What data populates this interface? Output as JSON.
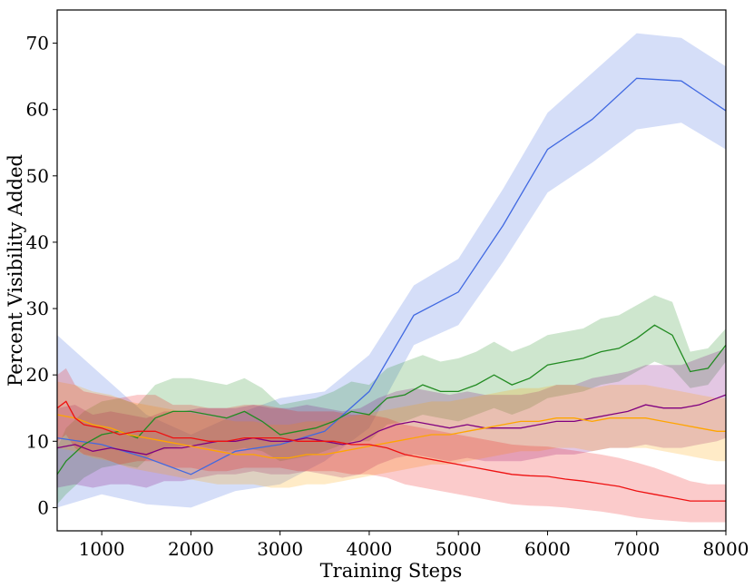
{
  "chart_data": {
    "type": "line",
    "title": "",
    "xlabel": "Training Steps",
    "ylabel": "Percent Visibility Added",
    "xlim": [
      500,
      8000
    ],
    "ylim": [
      -3.5,
      75
    ],
    "xticks": [
      1000,
      2000,
      3000,
      4000,
      5000,
      6000,
      7000,
      8000
    ],
    "yticks": [
      0,
      10,
      20,
      30,
      40,
      50,
      60,
      70
    ],
    "grid": false,
    "legend": "none",
    "series": [
      {
        "color": "#4169e1",
        "x": [
          500,
          1000,
          1500,
          2000,
          2500,
          3000,
          3500,
          4000,
          4500,
          5000,
          5500,
          6000,
          6500,
          7000,
          7500,
          8000
        ],
        "y": [
          10.5,
          9.5,
          7.5,
          5.0,
          8.5,
          9.5,
          11.5,
          17.5,
          29.0,
          32.5,
          42.5,
          54.0,
          58.5,
          64.7,
          64.3,
          59.8
        ],
        "lower": [
          0.0,
          2.0,
          0.5,
          0.0,
          2.5,
          3.5,
          7.0,
          12.0,
          24.5,
          27.5,
          37.0,
          47.5,
          52.0,
          57.0,
          58.0,
          54.0
        ],
        "upper": [
          26.0,
          20.0,
          14.0,
          11.0,
          14.0,
          16.5,
          17.5,
          23.0,
          33.5,
          37.5,
          48.0,
          59.5,
          65.5,
          71.5,
          70.8,
          66.5
        ]
      },
      {
        "color": "#228b22",
        "x": [
          500,
          600,
          800,
          1000,
          1200,
          1400,
          1600,
          1800,
          2000,
          2200,
          2400,
          2600,
          2800,
          3000,
          3200,
          3400,
          3600,
          3800,
          4000,
          4200,
          4400,
          4600,
          4800,
          5000,
          5200,
          5400,
          5600,
          5800,
          6000,
          6200,
          6400,
          6600,
          6800,
          7000,
          7200,
          7400,
          7600,
          7800,
          8000
        ],
        "y": [
          5.0,
          7.0,
          9.5,
          11.0,
          11.5,
          10.5,
          13.5,
          14.5,
          14.5,
          14.0,
          13.5,
          14.5,
          13.0,
          11.0,
          11.5,
          12.0,
          13.0,
          14.5,
          14.0,
          16.5,
          17.0,
          18.5,
          17.5,
          17.5,
          18.5,
          20.0,
          18.5,
          19.5,
          21.5,
          22.0,
          22.5,
          23.5,
          24.0,
          25.5,
          27.5,
          26.0,
          20.5,
          21.0,
          24.5
        ],
        "lower": [
          0.5,
          2.0,
          4.5,
          6.0,
          6.5,
          6.0,
          8.5,
          9.0,
          9.5,
          9.0,
          8.5,
          9.0,
          8.5,
          7.0,
          7.5,
          8.0,
          9.0,
          10.0,
          10.0,
          12.5,
          13.0,
          14.0,
          13.5,
          13.0,
          14.0,
          15.0,
          14.0,
          15.0,
          16.5,
          17.0,
          17.5,
          18.5,
          19.0,
          20.5,
          22.0,
          21.0,
          18.0,
          18.5,
          22.0
        ],
        "upper": [
          9.0,
          12.0,
          14.5,
          16.0,
          16.5,
          15.5,
          18.5,
          19.5,
          19.5,
          19.0,
          18.5,
          19.5,
          18.0,
          15.5,
          16.0,
          16.5,
          17.5,
          19.0,
          18.5,
          21.0,
          22.0,
          23.0,
          22.0,
          22.5,
          23.5,
          25.0,
          23.5,
          24.5,
          26.0,
          26.5,
          27.0,
          28.5,
          29.0,
          30.5,
          32.0,
          31.0,
          23.5,
          24.0,
          27.0
        ]
      },
      {
        "color": "#800080",
        "x": [
          500,
          700,
          900,
          1100,
          1300,
          1500,
          1700,
          1900,
          2100,
          2300,
          2500,
          2700,
          2900,
          3100,
          3300,
          3500,
          3700,
          3900,
          4100,
          4300,
          4500,
          4700,
          4900,
          5100,
          5300,
          5500,
          5700,
          5900,
          6100,
          6300,
          6500,
          6700,
          6900,
          7100,
          7300,
          7500,
          7700,
          7900,
          8000
        ],
        "y": [
          9.0,
          9.5,
          8.5,
          9.0,
          8.5,
          8.0,
          9.0,
          9.0,
          9.5,
          10.0,
          10.0,
          10.5,
          10.0,
          10.0,
          10.5,
          10.0,
          9.5,
          10.0,
          11.5,
          12.5,
          13.0,
          12.5,
          12.0,
          12.5,
          12.0,
          12.0,
          12.0,
          12.5,
          13.0,
          13.0,
          13.5,
          14.0,
          14.5,
          15.5,
          15.0,
          15.0,
          15.5,
          16.5,
          17.0
        ],
        "lower": [
          3.0,
          3.5,
          3.0,
          3.5,
          3.5,
          3.0,
          4.0,
          4.0,
          4.5,
          5.0,
          5.0,
          5.5,
          5.0,
          5.0,
          5.5,
          5.0,
          4.5,
          5.0,
          6.5,
          7.5,
          8.0,
          7.5,
          7.0,
          7.5,
          7.0,
          7.0,
          7.0,
          7.5,
          8.0,
          8.0,
          8.5,
          9.0,
          9.0,
          9.5,
          9.0,
          9.0,
          9.5,
          10.0,
          10.5
        ],
        "upper": [
          15.0,
          15.5,
          14.0,
          14.5,
          14.0,
          13.5,
          14.5,
          14.5,
          15.0,
          15.0,
          15.0,
          15.5,
          15.0,
          15.0,
          15.5,
          15.0,
          14.5,
          15.0,
          16.5,
          17.5,
          18.0,
          17.5,
          17.0,
          17.5,
          17.0,
          17.0,
          17.0,
          17.5,
          18.5,
          18.5,
          19.5,
          20.0,
          20.5,
          21.5,
          21.5,
          21.5,
          22.5,
          23.5,
          24.0
        ]
      },
      {
        "color": "#ffa500",
        "x": [
          500,
          700,
          900,
          1100,
          1300,
          1500,
          1700,
          1900,
          2100,
          2300,
          2500,
          2700,
          2900,
          3100,
          3300,
          3500,
          3700,
          3900,
          4100,
          4300,
          4500,
          4700,
          4900,
          5100,
          5300,
          5500,
          5700,
          5900,
          6100,
          6300,
          6500,
          6700,
          6900,
          7100,
          7300,
          7500,
          7700,
          7900,
          8000
        ],
        "y": [
          14.0,
          13.5,
          12.5,
          12.0,
          11.0,
          10.5,
          10.0,
          9.5,
          9.0,
          8.5,
          8.0,
          8.0,
          7.5,
          7.5,
          8.0,
          8.0,
          8.5,
          9.0,
          9.5,
          10.0,
          10.5,
          11.0,
          11.0,
          11.5,
          12.0,
          12.5,
          13.0,
          13.0,
          13.5,
          13.5,
          13.0,
          13.5,
          13.5,
          13.5,
          13.0,
          12.5,
          12.0,
          11.5,
          11.5
        ],
        "lower": [
          9.0,
          8.5,
          7.5,
          7.0,
          6.0,
          5.5,
          5.0,
          4.5,
          4.0,
          3.5,
          3.5,
          3.5,
          3.0,
          3.0,
          3.5,
          3.5,
          4.0,
          4.5,
          5.0,
          5.5,
          6.0,
          6.5,
          6.5,
          7.0,
          7.5,
          8.0,
          8.5,
          8.5,
          9.0,
          9.0,
          8.5,
          9.0,
          9.0,
          9.0,
          8.5,
          8.0,
          7.5,
          7.0,
          7.0
        ],
        "upper": [
          19.0,
          18.5,
          17.5,
          17.0,
          16.0,
          15.5,
          15.0,
          14.5,
          14.0,
          13.5,
          13.0,
          13.0,
          12.5,
          12.5,
          13.0,
          13.0,
          13.5,
          14.0,
          14.5,
          15.0,
          15.5,
          16.0,
          16.0,
          16.5,
          17.0,
          17.5,
          18.0,
          18.0,
          18.5,
          18.5,
          18.0,
          18.5,
          18.5,
          18.5,
          18.0,
          17.5,
          17.0,
          16.5,
          16.5
        ]
      },
      {
        "color": "#ee1111",
        "x": [
          500,
          600,
          700,
          800,
          1000,
          1200,
          1400,
          1600,
          1800,
          2000,
          2200,
          2400,
          2600,
          2800,
          3000,
          3200,
          3400,
          3600,
          3800,
          4000,
          4200,
          4400,
          4600,
          4800,
          5000,
          5200,
          5400,
          5600,
          5800,
          6000,
          6200,
          6400,
          6600,
          6800,
          7000,
          7200,
          7400,
          7600,
          7800,
          8000
        ],
        "y": [
          15.0,
          16.0,
          13.5,
          12.5,
          12.0,
          11.0,
          11.5,
          11.5,
          10.5,
          10.5,
          10.0,
          10.0,
          10.5,
          10.5,
          10.5,
          10.0,
          10.0,
          10.0,
          9.5,
          9.5,
          9.0,
          8.0,
          7.5,
          7.0,
          6.5,
          6.0,
          5.5,
          5.0,
          4.8,
          4.7,
          4.3,
          4.0,
          3.6,
          3.2,
          2.5,
          2.0,
          1.5,
          1.0,
          1.0,
          1.0
        ],
        "lower": [
          10.0,
          11.0,
          9.0,
          8.0,
          7.5,
          6.5,
          7.0,
          7.0,
          6.0,
          6.0,
          5.5,
          5.5,
          6.0,
          6.0,
          6.0,
          5.5,
          5.5,
          5.5,
          5.0,
          5.0,
          4.5,
          3.5,
          3.0,
          2.5,
          2.0,
          1.5,
          1.0,
          0.5,
          0.3,
          0.2,
          0.0,
          -0.3,
          -0.6,
          -1.0,
          -1.5,
          -1.8,
          -2.0,
          -2.2,
          -2.2,
          -2.2
        ],
        "upper": [
          20.0,
          21.0,
          18.5,
          17.5,
          17.0,
          16.5,
          17.0,
          17.0,
          15.5,
          15.5,
          15.0,
          15.0,
          15.5,
          15.5,
          15.0,
          14.5,
          14.5,
          14.5,
          14.0,
          14.0,
          13.5,
          12.5,
          12.0,
          11.5,
          11.0,
          10.5,
          10.0,
          9.5,
          9.3,
          9.2,
          8.8,
          8.4,
          8.0,
          7.5,
          6.8,
          6.0,
          5.0,
          4.0,
          3.5,
          3.5
        ]
      }
    ]
  }
}
